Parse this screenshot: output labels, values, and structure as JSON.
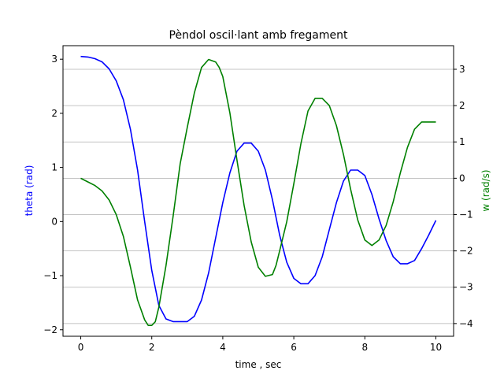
{
  "chart_data": {
    "type": "line",
    "title": "Pèndol oscil·lant amb fregament",
    "xlabel": "time , sec",
    "ylabel_left": "theta (rad)",
    "ylabel_right": "w (rad/s)",
    "xlim": [
      -0.5,
      10.5
    ],
    "ylim_left": [
      -2.12,
      3.25
    ],
    "ylim_right": [
      -4.35,
      3.65
    ],
    "x_ticks": [
      "0",
      "2",
      "4",
      "6",
      "8",
      "10"
    ],
    "y_left_ticks": [
      "−2",
      "−1",
      "0",
      "1",
      "2",
      "3"
    ],
    "y_right_ticks": [
      "−4",
      "−3",
      "−2",
      "−1",
      "0",
      "1",
      "2",
      "3"
    ],
    "grid": "horizontal lines at right-axis ticks",
    "colors": {
      "theta": "#0000ff",
      "w": "#008000",
      "grid": "#b0b0b0"
    },
    "series": [
      {
        "axis": "left",
        "color": "#0000ff",
        "x": [
          0,
          0.2,
          0.4,
          0.6,
          0.8,
          1.0,
          1.2,
          1.4,
          1.6,
          1.8,
          2.0,
          2.2,
          2.4,
          2.6,
          2.8,
          3.0,
          3.2,
          3.4,
          3.6,
          3.8,
          4.0,
          4.2,
          4.4,
          4.6,
          4.8,
          5.0,
          5.2,
          5.4,
          5.6,
          5.8,
          6.0,
          6.2,
          6.4,
          6.6,
          6.8,
          7.0,
          7.2,
          7.4,
          7.6,
          7.8,
          8.0,
          8.2,
          8.4,
          8.6,
          8.8,
          9.0,
          9.2,
          9.4,
          9.6,
          9.8,
          10.0
        ],
        "values": [
          3.05,
          3.04,
          3.01,
          2.95,
          2.82,
          2.6,
          2.25,
          1.7,
          0.95,
          0.0,
          -0.9,
          -1.55,
          -1.8,
          -1.85,
          -1.85,
          -1.85,
          -1.75,
          -1.45,
          -0.95,
          -0.3,
          0.35,
          0.9,
          1.3,
          1.45,
          1.45,
          1.3,
          0.95,
          0.4,
          -0.25,
          -0.75,
          -1.05,
          -1.15,
          -1.15,
          -1.0,
          -0.65,
          -0.15,
          0.35,
          0.75,
          0.95,
          0.95,
          0.85,
          0.5,
          0.05,
          -0.35,
          -0.65,
          -0.78,
          -0.78,
          -0.72,
          -0.5,
          -0.25,
          0.02
        ]
      },
      {
        "axis": "right",
        "color": "#008000",
        "x": [
          0,
          0.2,
          0.4,
          0.6,
          0.8,
          1.0,
          1.2,
          1.4,
          1.6,
          1.8,
          1.9,
          2.0,
          2.1,
          2.2,
          2.4,
          2.6,
          2.8,
          3.0,
          3.2,
          3.4,
          3.6,
          3.8,
          3.9,
          4.0,
          4.2,
          4.4,
          4.6,
          4.8,
          5.0,
          5.2,
          5.4,
          5.5,
          5.6,
          5.8,
          6.0,
          6.2,
          6.4,
          6.6,
          6.8,
          7.0,
          7.2,
          7.4,
          7.6,
          7.8,
          8.0,
          8.2,
          8.4,
          8.6,
          8.8,
          9.0,
          9.2,
          9.4,
          9.6,
          9.8,
          10.0
        ],
        "values": [
          0.0,
          -0.1,
          -0.2,
          -0.35,
          -0.6,
          -1.0,
          -1.6,
          -2.45,
          -3.35,
          -3.9,
          -4.05,
          -4.05,
          -3.95,
          -3.55,
          -2.4,
          -1.05,
          0.4,
          1.4,
          2.35,
          3.05,
          3.27,
          3.2,
          3.05,
          2.8,
          1.8,
          0.5,
          -0.75,
          -1.75,
          -2.45,
          -2.7,
          -2.65,
          -2.4,
          -2.0,
          -1.2,
          -0.15,
          0.95,
          1.85,
          2.2,
          2.2,
          2.0,
          1.45,
          0.65,
          -0.3,
          -1.15,
          -1.7,
          -1.85,
          -1.7,
          -1.3,
          -0.65,
          0.15,
          0.85,
          1.35,
          1.55,
          1.55,
          1.55
        ]
      }
    ]
  }
}
